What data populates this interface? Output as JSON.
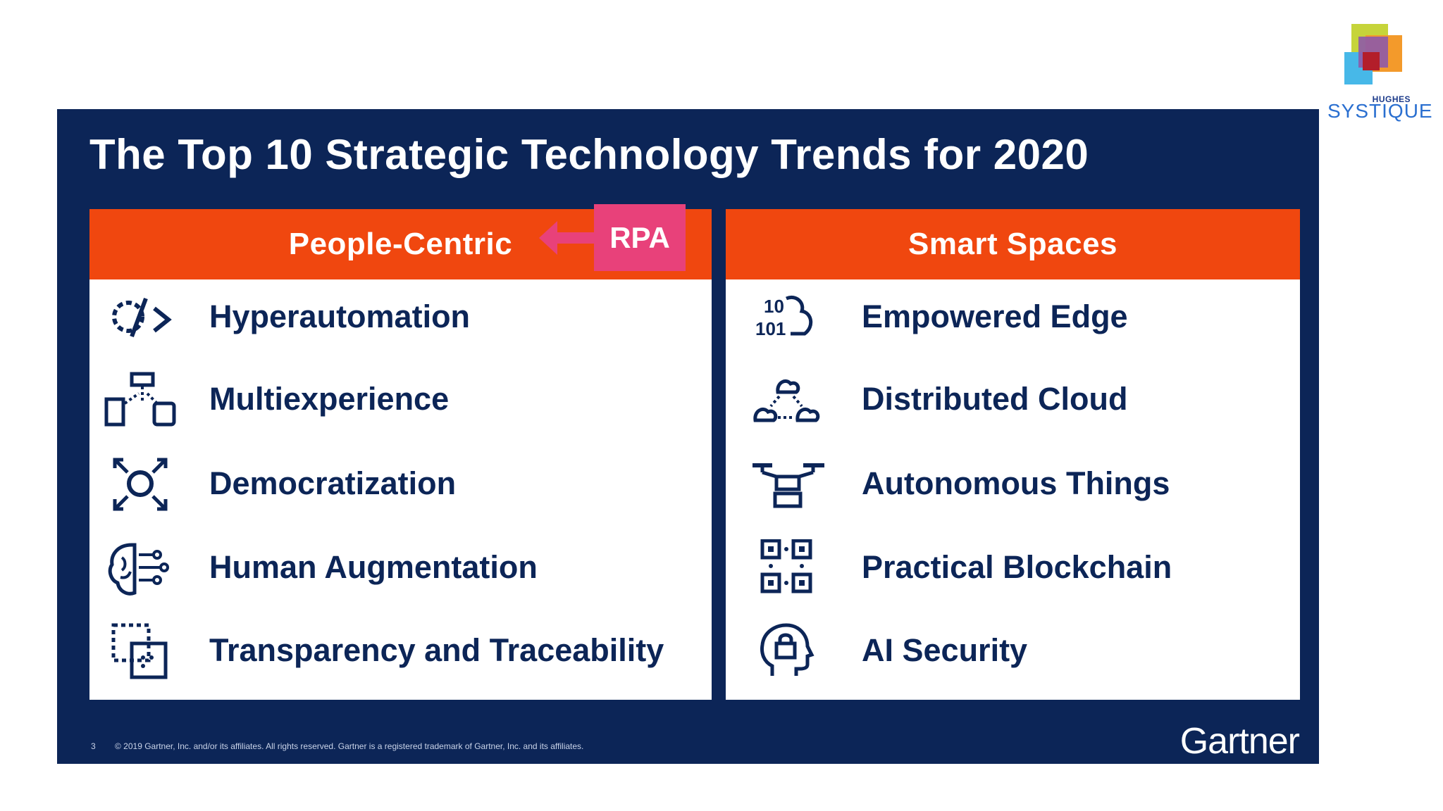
{
  "brand": {
    "top": "HUGHES",
    "main": "SYSTIQUE",
    "colors": [
      "#c6d43a",
      "#8e5aa8",
      "#f39a2b",
      "#47b8e8",
      "#b31e2a"
    ]
  },
  "slide": {
    "title": "The Top 10 Strategic Technology Trends for 2020",
    "footer": "© 2019 Gartner, Inc. and/or its affiliates. All rights reserved. Gartner is a registered trademark of Gartner, Inc. and its affiliates.",
    "page_number": "3",
    "publisher": "Gartner"
  },
  "left_panel": {
    "header": "People-Centric",
    "items": [
      {
        "label": "Hyperautomation",
        "icon": "gear-code-icon"
      },
      {
        "label": "Multiexperience",
        "icon": "devices-icon"
      },
      {
        "label": "Democratization",
        "icon": "expand-circle-icon"
      },
      {
        "label": "Human Augmentation",
        "icon": "brain-circuit-icon"
      },
      {
        "label": "Transparency and Traceability",
        "icon": "trace-box-icon"
      }
    ]
  },
  "right_panel": {
    "header": "Smart Spaces",
    "items": [
      {
        "label": "Empowered Edge",
        "icon": "binary-cloud-icon"
      },
      {
        "label": "Distributed Cloud",
        "icon": "clouds-network-icon"
      },
      {
        "label": "Autonomous Things",
        "icon": "drone-icon"
      },
      {
        "label": "Practical Blockchain",
        "icon": "blocks-icon"
      },
      {
        "label": "AI Security",
        "icon": "head-lock-icon"
      }
    ]
  },
  "callout": {
    "label": "RPA",
    "color": "#e8417a"
  },
  "colors": {
    "navy": "#0c2557",
    "orange": "#f0470f"
  }
}
